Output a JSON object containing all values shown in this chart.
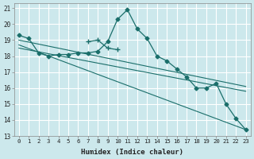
{
  "xlabel": "Humidex (Indice chaleur)",
  "bg_color": "#cce8ec",
  "grid_color": "#ffffff",
  "line_color": "#1a6e6a",
  "xlim": [
    -0.5,
    23.5
  ],
  "ylim": [
    13,
    21.3
  ],
  "xticks": [
    0,
    1,
    2,
    3,
    4,
    5,
    6,
    7,
    8,
    9,
    10,
    11,
    12,
    13,
    14,
    15,
    16,
    17,
    18,
    19,
    20,
    21,
    22,
    23
  ],
  "yticks": [
    13,
    14,
    15,
    16,
    17,
    18,
    19,
    20,
    21
  ],
  "series_diamond": {
    "x": [
      0,
      1,
      2,
      3,
      4,
      5,
      6,
      7,
      8,
      9,
      10,
      11,
      12,
      13,
      14,
      15,
      16,
      17,
      18,
      19,
      20,
      21,
      22,
      23
    ],
    "y": [
      19.3,
      19.1,
      18.2,
      18.0,
      18.1,
      18.1,
      18.2,
      18.2,
      18.3,
      18.9,
      20.3,
      20.9,
      19.7,
      19.1,
      18.0,
      17.7,
      17.2,
      16.7,
      16.0,
      16.0,
      16.3,
      15.0,
      14.1,
      13.4
    ]
  },
  "series_plus": {
    "x": [
      7,
      8,
      9,
      10
    ],
    "y": [
      18.9,
      19.0,
      18.5,
      18.4
    ]
  },
  "series_line1": {
    "x": [
      0,
      23
    ],
    "y": [
      19.0,
      16.1
    ]
  },
  "series_line2": {
    "x": [
      0,
      23
    ],
    "y": [
      18.7,
      13.4
    ]
  },
  "series_line3": {
    "x": [
      0,
      23
    ],
    "y": [
      18.5,
      15.8
    ]
  }
}
